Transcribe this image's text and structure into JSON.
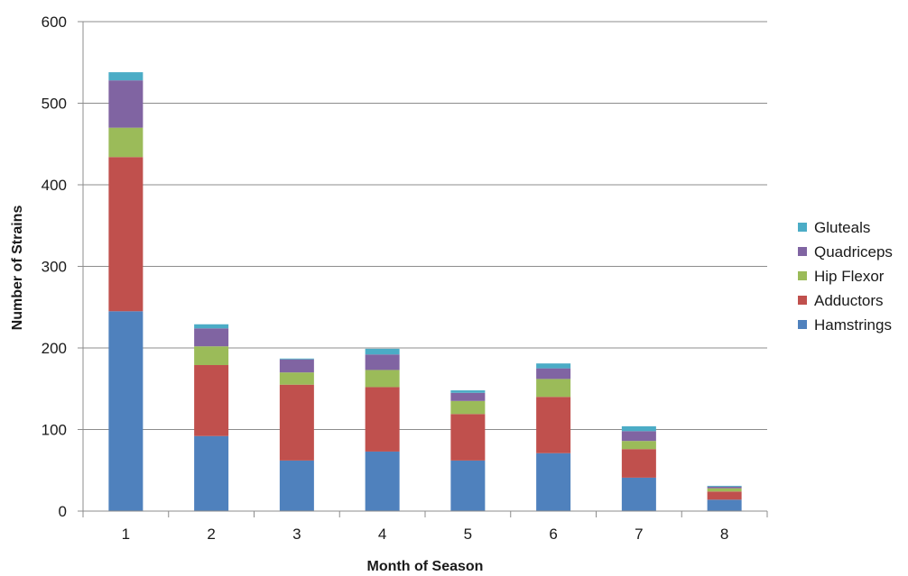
{
  "chart_data": {
    "type": "bar",
    "stacked": true,
    "categories": [
      "1",
      "2",
      "3",
      "4",
      "5",
      "6",
      "7",
      "8"
    ],
    "series": [
      {
        "name": "Hamstrings",
        "color": "#4f81bd",
        "values": [
          245,
          92,
          62,
          73,
          62,
          71,
          41,
          14
        ]
      },
      {
        "name": "Adductors",
        "color": "#c0504d",
        "values": [
          189,
          87,
          93,
          79,
          57,
          69,
          35,
          10
        ]
      },
      {
        "name": "Hip Flexor",
        "color": "#9bbb59",
        "values": [
          36,
          23,
          15,
          21,
          16,
          22,
          10,
          4
        ]
      },
      {
        "name": "Quadriceps",
        "color": "#8064a2",
        "values": [
          58,
          22,
          16,
          19,
          10,
          13,
          12,
          2
        ]
      },
      {
        "name": "Gluteals",
        "color": "#4bacc6",
        "values": [
          10,
          5,
          1,
          7,
          3,
          6,
          6,
          1
        ]
      }
    ],
    "xlabel": "Month of Season",
    "ylabel": "Number of Strains",
    "ylim": [
      0,
      600
    ],
    "yticks": [
      "0",
      "100",
      "200",
      "300",
      "400",
      "500",
      "600"
    ],
    "grid": true,
    "legend_position": "right"
  }
}
